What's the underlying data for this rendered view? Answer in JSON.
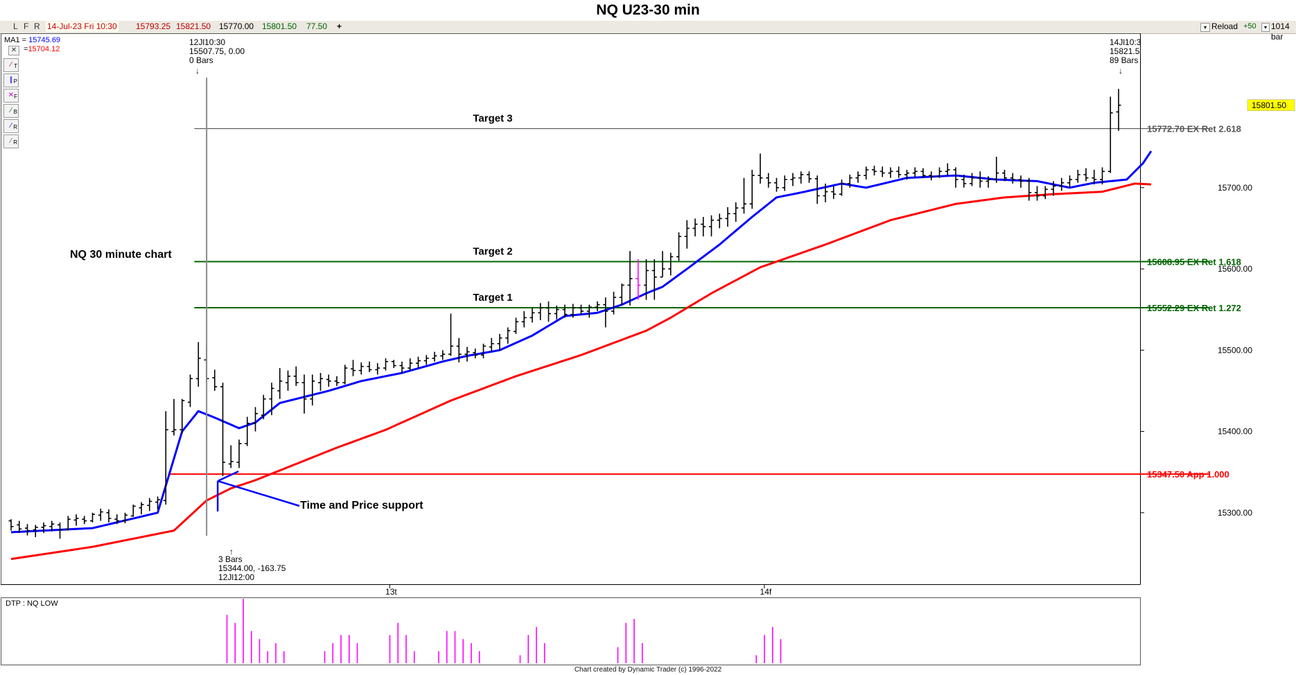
{
  "window_title": "NQ U23-30 min",
  "toolbar": {
    "flags": [
      "L",
      "F",
      "R"
    ],
    "date": "14-Jul-23 Fri 10:30",
    "open": "15793.25",
    "high": "15821.50",
    "low": "15770.00",
    "close": "15801.50",
    "change": "77.50",
    "plus": "+",
    "reload": "Reload",
    "reload_count": "+50",
    "bar_count": "1014 bar"
  },
  "ma_legend": {
    "ma1_label": "MA1 =",
    "ma1_value": "15745.69",
    "ma2_label": "=",
    "ma2_value": "15704.12"
  },
  "side_tools": [
    "T",
    "P",
    "F",
    "B",
    "R",
    "R"
  ],
  "chart_data": {
    "type": "ohlc",
    "title": "NQ U23-30 min",
    "x_tick_labels": [
      "13t",
      "14f"
    ],
    "y_ticks": [
      "15300.00",
      "15400.00",
      "15500.00",
      "15600.00",
      "15700.00"
    ],
    "ylim": [
      15212,
      15890
    ],
    "last_price_label": "15801.50",
    "levels": [
      {
        "label": "15772.70 EX Ret 2.618",
        "price": 15772.7,
        "color": "#555555",
        "text": "Target 3"
      },
      {
        "label": "15608.95 EX Ret 1.618",
        "price": 15608.95,
        "color": "#006400",
        "text": "Target 2"
      },
      {
        "label": "15552.29 EX Ret 1.272",
        "price": 15552.29,
        "color": "#006400",
        "text": "Target 1"
      },
      {
        "label": "15347.50 App 1.000",
        "price": 15347.5,
        "color": "#ff0000",
        "text": ""
      }
    ],
    "annotations": {
      "chart_label": "NQ 30 minute chart",
      "support_label": "Time and Price support",
      "marker_top": [
        "12Jl10:30",
        "15507.75, 0.00",
        "0 Bars"
      ],
      "marker_bottom": [
        "3 Bars",
        "15344.00, -163.75",
        "12Jl12:00"
      ],
      "marker_right": [
        "14Jl10:3",
        "15821.5",
        "89 Bars"
      ]
    },
    "bars": [
      {
        "o": 15290,
        "h": 15292,
        "l": 15278,
        "c": 15283
      },
      {
        "o": 15285,
        "h": 15290,
        "l": 15275,
        "c": 15280
      },
      {
        "o": 15281,
        "h": 15286,
        "l": 15272,
        "c": 15278
      },
      {
        "o": 15279,
        "h": 15285,
        "l": 15270,
        "c": 15282
      },
      {
        "o": 15282,
        "h": 15288,
        "l": 15275,
        "c": 15284
      },
      {
        "o": 15283,
        "h": 15290,
        "l": 15277,
        "c": 15286
      },
      {
        "o": 15285,
        "h": 15288,
        "l": 15268,
        "c": 15279
      },
      {
        "o": 15280,
        "h": 15296,
        "l": 15278,
        "c": 15292
      },
      {
        "o": 15291,
        "h": 15298,
        "l": 15284,
        "c": 15293
      },
      {
        "o": 15292,
        "h": 15296,
        "l": 15286,
        "c": 15290
      },
      {
        "o": 15290,
        "h": 15300,
        "l": 15288,
        "c": 15298
      },
      {
        "o": 15297,
        "h": 15305,
        "l": 15290,
        "c": 15301
      },
      {
        "o": 15300,
        "h": 15304,
        "l": 15288,
        "c": 15293
      },
      {
        "o": 15292,
        "h": 15298,
        "l": 15286,
        "c": 15290
      },
      {
        "o": 15290,
        "h": 15300,
        "l": 15287,
        "c": 15297
      },
      {
        "o": 15296,
        "h": 15310,
        "l": 15295,
        "c": 15308
      },
      {
        "o": 15306,
        "h": 15313,
        "l": 15298,
        "c": 15310
      },
      {
        "o": 15309,
        "h": 15318,
        "l": 15302,
        "c": 15314
      },
      {
        "o": 15313,
        "h": 15320,
        "l": 15304,
        "c": 15316
      },
      {
        "o": 15315,
        "h": 15425,
        "l": 15310,
        "c": 15402
      },
      {
        "o": 15400,
        "h": 15440,
        "l": 15395,
        "c": 15402
      },
      {
        "o": 15402,
        "h": 15440,
        "l": 15397,
        "c": 15438
      },
      {
        "o": 15436,
        "h": 15470,
        "l": 15430,
        "c": 15465
      },
      {
        "o": 15465,
        "h": 15510,
        "l": 15455,
        "c": 15490
      },
      {
        "o": 15488,
        "h": 15505,
        "l": 15460,
        "c": 15465
      },
      {
        "o": 15466,
        "h": 15476,
        "l": 15450,
        "c": 15455
      },
      {
        "o": 15455,
        "h": 15460,
        "l": 15345,
        "c": 15362
      },
      {
        "o": 15360,
        "h": 15383,
        "l": 15355,
        "c": 15363
      },
      {
        "o": 15362,
        "h": 15390,
        "l": 15355,
        "c": 15385
      },
      {
        "o": 15385,
        "h": 15418,
        "l": 15382,
        "c": 15410
      },
      {
        "o": 15410,
        "h": 15430,
        "l": 15400,
        "c": 15422
      },
      {
        "o": 15420,
        "h": 15445,
        "l": 15415,
        "c": 15440
      },
      {
        "o": 15440,
        "h": 15460,
        "l": 15420,
        "c": 15453
      },
      {
        "o": 15450,
        "h": 15478,
        "l": 15440,
        "c": 15462
      },
      {
        "o": 15460,
        "h": 15475,
        "l": 15450,
        "c": 15468
      },
      {
        "o": 15468,
        "h": 15480,
        "l": 15456,
        "c": 15460
      },
      {
        "o": 15460,
        "h": 15470,
        "l": 15422,
        "c": 15440
      },
      {
        "o": 15440,
        "h": 15470,
        "l": 15432,
        "c": 15462
      },
      {
        "o": 15460,
        "h": 15472,
        "l": 15450,
        "c": 15465
      },
      {
        "o": 15464,
        "h": 15470,
        "l": 15455,
        "c": 15462
      },
      {
        "o": 15462,
        "h": 15468,
        "l": 15456,
        "c": 15460
      },
      {
        "o": 15460,
        "h": 15482,
        "l": 15458,
        "c": 15478
      },
      {
        "o": 15477,
        "h": 15488,
        "l": 15468,
        "c": 15475
      },
      {
        "o": 15475,
        "h": 15485,
        "l": 15470,
        "c": 15480
      },
      {
        "o": 15480,
        "h": 15486,
        "l": 15473,
        "c": 15476
      },
      {
        "o": 15476,
        "h": 15484,
        "l": 15470,
        "c": 15478
      },
      {
        "o": 15478,
        "h": 15490,
        "l": 15475,
        "c": 15486
      },
      {
        "o": 15486,
        "h": 15488,
        "l": 15478,
        "c": 15481
      },
      {
        "o": 15481,
        "h": 15486,
        "l": 15472,
        "c": 15478
      },
      {
        "o": 15478,
        "h": 15490,
        "l": 15475,
        "c": 15484
      },
      {
        "o": 15484,
        "h": 15492,
        "l": 15478,
        "c": 15487
      },
      {
        "o": 15487,
        "h": 15494,
        "l": 15482,
        "c": 15490
      },
      {
        "o": 15490,
        "h": 15498,
        "l": 15486,
        "c": 15493
      },
      {
        "o": 15493,
        "h": 15500,
        "l": 15488,
        "c": 15495
      },
      {
        "o": 15495,
        "h": 15545,
        "l": 15493,
        "c": 15505
      },
      {
        "o": 15505,
        "h": 15515,
        "l": 15485,
        "c": 15495
      },
      {
        "o": 15495,
        "h": 15504,
        "l": 15486,
        "c": 15498
      },
      {
        "o": 15497,
        "h": 15502,
        "l": 15490,
        "c": 15494
      },
      {
        "o": 15494,
        "h": 15508,
        "l": 15490,
        "c": 15505
      },
      {
        "o": 15504,
        "h": 15515,
        "l": 15498,
        "c": 15508
      },
      {
        "o": 15508,
        "h": 15520,
        "l": 15500,
        "c": 15515
      },
      {
        "o": 15515,
        "h": 15528,
        "l": 15508,
        "c": 15524
      },
      {
        "o": 15523,
        "h": 15540,
        "l": 15520,
        "c": 15535
      },
      {
        "o": 15535,
        "h": 15548,
        "l": 15528,
        "c": 15540
      },
      {
        "o": 15540,
        "h": 15552,
        "l": 15534,
        "c": 15546
      },
      {
        "o": 15546,
        "h": 15558,
        "l": 15537,
        "c": 15552
      },
      {
        "o": 15552,
        "h": 15560,
        "l": 15535,
        "c": 15545
      },
      {
        "o": 15545,
        "h": 15555,
        "l": 15538,
        "c": 15550
      },
      {
        "o": 15550,
        "h": 15556,
        "l": 15540,
        "c": 15544
      },
      {
        "o": 15544,
        "h": 15557,
        "l": 15540,
        "c": 15552
      },
      {
        "o": 15552,
        "h": 15556,
        "l": 15544,
        "c": 15548
      },
      {
        "o": 15548,
        "h": 15556,
        "l": 15540,
        "c": 15553
      },
      {
        "o": 15553,
        "h": 15560,
        "l": 15548,
        "c": 15556
      },
      {
        "o": 15556,
        "h": 15565,
        "l": 15528,
        "c": 15548
      },
      {
        "o": 15548,
        "h": 15572,
        "l": 15544,
        "c": 15565
      },
      {
        "o": 15565,
        "h": 15582,
        "l": 15555,
        "c": 15580
      },
      {
        "o": 15580,
        "h": 15622,
        "l": 15555,
        "c": 15588
      },
      {
        "o": 15588,
        "h": 15612,
        "l": 15562,
        "c": 15580
      },
      {
        "o": 15580,
        "h": 15612,
        "l": 15562,
        "c": 15598
      },
      {
        "o": 15598,
        "h": 15612,
        "l": 15562,
        "c": 15590
      },
      {
        "o": 15590,
        "h": 15622,
        "l": 15590,
        "c": 15600
      },
      {
        "o": 15600,
        "h": 15620,
        "l": 15592,
        "c": 15615
      },
      {
        "o": 15615,
        "h": 15645,
        "l": 15610,
        "c": 15640
      },
      {
        "o": 15640,
        "h": 15660,
        "l": 15625,
        "c": 15650
      },
      {
        "o": 15650,
        "h": 15662,
        "l": 15640,
        "c": 15655
      },
      {
        "o": 15655,
        "h": 15664,
        "l": 15640,
        "c": 15652
      },
      {
        "o": 15652,
        "h": 15666,
        "l": 15640,
        "c": 15660
      },
      {
        "o": 15660,
        "h": 15668,
        "l": 15650,
        "c": 15662
      },
      {
        "o": 15662,
        "h": 15676,
        "l": 15652,
        "c": 15668
      },
      {
        "o": 15668,
        "h": 15682,
        "l": 15658,
        "c": 15675
      },
      {
        "o": 15675,
        "h": 15712,
        "l": 15668,
        "c": 15680
      },
      {
        "o": 15680,
        "h": 15722,
        "l": 15674,
        "c": 15715
      },
      {
        "o": 15715,
        "h": 15742,
        "l": 15705,
        "c": 15712
      },
      {
        "o": 15712,
        "h": 15718,
        "l": 15700,
        "c": 15706
      },
      {
        "o": 15706,
        "h": 15712,
        "l": 15695,
        "c": 15700
      },
      {
        "o": 15700,
        "h": 15715,
        "l": 15696,
        "c": 15710
      },
      {
        "o": 15710,
        "h": 15718,
        "l": 15702,
        "c": 15712
      },
      {
        "o": 15712,
        "h": 15720,
        "l": 15705,
        "c": 15716
      },
      {
        "o": 15716,
        "h": 15720,
        "l": 15706,
        "c": 15711
      },
      {
        "o": 15711,
        "h": 15715,
        "l": 15680,
        "c": 15690
      },
      {
        "o": 15690,
        "h": 15705,
        "l": 15682,
        "c": 15695
      },
      {
        "o": 15695,
        "h": 15702,
        "l": 15686,
        "c": 15692
      },
      {
        "o": 15692,
        "h": 15710,
        "l": 15690,
        "c": 15705
      },
      {
        "o": 15705,
        "h": 15716,
        "l": 15700,
        "c": 15712
      },
      {
        "o": 15712,
        "h": 15720,
        "l": 15706,
        "c": 15715
      },
      {
        "o": 15715,
        "h": 15726,
        "l": 15710,
        "c": 15722
      },
      {
        "o": 15722,
        "h": 15727,
        "l": 15715,
        "c": 15720
      },
      {
        "o": 15720,
        "h": 15726,
        "l": 15713,
        "c": 15718
      },
      {
        "o": 15718,
        "h": 15725,
        "l": 15712,
        "c": 15720
      },
      {
        "o": 15720,
        "h": 15726,
        "l": 15712,
        "c": 15716
      },
      {
        "o": 15716,
        "h": 15722,
        "l": 15710,
        "c": 15718
      },
      {
        "o": 15718,
        "h": 15725,
        "l": 15713,
        "c": 15720
      },
      {
        "o": 15720,
        "h": 15724,
        "l": 15712,
        "c": 15715
      },
      {
        "o": 15715,
        "h": 15720,
        "l": 15709,
        "c": 15714
      },
      {
        "o": 15714,
        "h": 15725,
        "l": 15712,
        "c": 15720
      },
      {
        "o": 15720,
        "h": 15730,
        "l": 15715,
        "c": 15722
      },
      {
        "o": 15722,
        "h": 15725,
        "l": 15700,
        "c": 15710
      },
      {
        "o": 15710,
        "h": 15716,
        "l": 15700,
        "c": 15705
      },
      {
        "o": 15705,
        "h": 15718,
        "l": 15702,
        "c": 15712
      },
      {
        "o": 15712,
        "h": 15720,
        "l": 15700,
        "c": 15708
      },
      {
        "o": 15708,
        "h": 15714,
        "l": 15700,
        "c": 15710
      },
      {
        "o": 15710,
        "h": 15738,
        "l": 15706,
        "c": 15718
      },
      {
        "o": 15718,
        "h": 15722,
        "l": 15708,
        "c": 15712
      },
      {
        "o": 15712,
        "h": 15718,
        "l": 15705,
        "c": 15710
      },
      {
        "o": 15710,
        "h": 15715,
        "l": 15700,
        "c": 15708
      },
      {
        "o": 15708,
        "h": 15712,
        "l": 15684,
        "c": 15694
      },
      {
        "o": 15694,
        "h": 15702,
        "l": 15684,
        "c": 15690
      },
      {
        "o": 15690,
        "h": 15702,
        "l": 15686,
        "c": 15698
      },
      {
        "o": 15698,
        "h": 15708,
        "l": 15690,
        "c": 15702
      },
      {
        "o": 15702,
        "h": 15712,
        "l": 15696,
        "c": 15706
      },
      {
        "o": 15706,
        "h": 15715,
        "l": 15700,
        "c": 15710
      },
      {
        "o": 15710,
        "h": 15722,
        "l": 15706,
        "c": 15716
      },
      {
        "o": 15716,
        "h": 15724,
        "l": 15708,
        "c": 15712
      },
      {
        "o": 15712,
        "h": 15722,
        "l": 15704,
        "c": 15710
      },
      {
        "o": 15710,
        "h": 15725,
        "l": 15704,
        "c": 15720
      },
      {
        "o": 15720,
        "h": 15812,
        "l": 15718,
        "c": 15792
      },
      {
        "o": 15793.25,
        "h": 15821.5,
        "l": 15770,
        "c": 15801.5
      }
    ],
    "ma1": [
      [
        0,
        15276
      ],
      [
        10,
        15281
      ],
      [
        18,
        15300
      ],
      [
        21,
        15400
      ],
      [
        23,
        15425
      ],
      [
        25,
        15417
      ],
      [
        28,
        15404
      ],
      [
        30,
        15411
      ],
      [
        33,
        15435
      ],
      [
        35,
        15440
      ],
      [
        39,
        15450
      ],
      [
        43,
        15462
      ],
      [
        48,
        15472
      ],
      [
        53,
        15486
      ],
      [
        56,
        15493
      ],
      [
        60,
        15500
      ],
      [
        64,
        15518
      ],
      [
        68,
        15542
      ],
      [
        72,
        15546
      ],
      [
        75,
        15556
      ],
      [
        78,
        15570
      ],
      [
        80,
        15578
      ],
      [
        83,
        15600
      ],
      [
        87,
        15630
      ],
      [
        91,
        15664
      ],
      [
        94,
        15688
      ],
      [
        97,
        15694
      ],
      [
        102,
        15705
      ],
      [
        105,
        15700
      ],
      [
        110,
        15712
      ],
      [
        116,
        15715
      ],
      [
        121,
        15710
      ],
      [
        126,
        15708
      ],
      [
        130,
        15700
      ],
      [
        133,
        15706
      ],
      [
        137,
        15710
      ],
      [
        139,
        15730
      ],
      [
        140,
        15745
      ]
    ],
    "ma2": [
      [
        0,
        15243
      ],
      [
        10,
        15258
      ],
      [
        20,
        15278
      ],
      [
        24,
        15315
      ],
      [
        27,
        15330
      ],
      [
        30,
        15340
      ],
      [
        34,
        15356
      ],
      [
        40,
        15380
      ],
      [
        46,
        15402
      ],
      [
        54,
        15438
      ],
      [
        62,
        15468
      ],
      [
        70,
        15494
      ],
      [
        78,
        15524
      ],
      [
        81,
        15540
      ],
      [
        86,
        15570
      ],
      [
        92,
        15602
      ],
      [
        100,
        15630
      ],
      [
        108,
        15660
      ],
      [
        116,
        15680
      ],
      [
        122,
        15688
      ],
      [
        128,
        15692
      ],
      [
        134,
        15695
      ],
      [
        138,
        15705
      ],
      [
        140,
        15704
      ]
    ],
    "dtp_label": "DTP : NQ LOW",
    "dtp_bars": [
      {
        "x": 26,
        "v": 60
      },
      {
        "x": 27,
        "v": 50
      },
      {
        "x": 28,
        "v": 80
      },
      {
        "x": 29,
        "v": 40
      },
      {
        "x": 30,
        "v": 30
      },
      {
        "x": 31,
        "v": 15
      },
      {
        "x": 32,
        "v": 25
      },
      {
        "x": 33,
        "v": 15
      },
      {
        "x": 38,
        "v": 15
      },
      {
        "x": 39,
        "v": 25
      },
      {
        "x": 40,
        "v": 35
      },
      {
        "x": 41,
        "v": 35
      },
      {
        "x": 42,
        "v": 25
      },
      {
        "x": 46,
        "v": 35
      },
      {
        "x": 47,
        "v": 50
      },
      {
        "x": 48,
        "v": 35
      },
      {
        "x": 49,
        "v": 15
      },
      {
        "x": 52,
        "v": 15
      },
      {
        "x": 53,
        "v": 40
      },
      {
        "x": 54,
        "v": 40
      },
      {
        "x": 55,
        "v": 30
      },
      {
        "x": 56,
        "v": 25
      },
      {
        "x": 57,
        "v": 15
      },
      {
        "x": 62,
        "v": 10
      },
      {
        "x": 63,
        "v": 35
      },
      {
        "x": 64,
        "v": 45
      },
      {
        "x": 65,
        "v": 25
      },
      {
        "x": 74,
        "v": 20
      },
      {
        "x": 75,
        "v": 50
      },
      {
        "x": 76,
        "v": 55
      },
      {
        "x": 77,
        "v": 25
      },
      {
        "x": 91,
        "v": 10
      },
      {
        "x": 92,
        "v": 35
      },
      {
        "x": 93,
        "v": 45
      },
      {
        "x": 94,
        "v": 30
      }
    ],
    "footer": "Chart created by Dynamic Trader  (c) 1996-2022"
  }
}
